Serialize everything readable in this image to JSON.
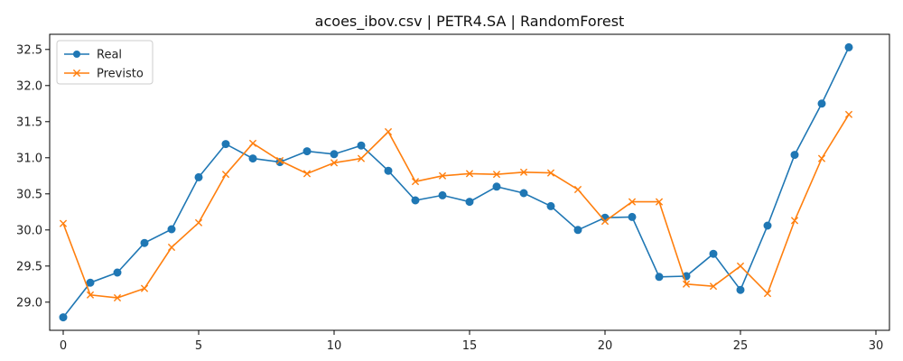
{
  "chart_data": {
    "type": "line",
    "title": "acoes_ibov.csv | PETR4.SA | RandomForest",
    "xlabel": "",
    "ylabel": "",
    "x": [
      0,
      1,
      2,
      3,
      4,
      5,
      6,
      7,
      8,
      9,
      10,
      11,
      12,
      13,
      14,
      15,
      16,
      17,
      18,
      19,
      20,
      21,
      22,
      23,
      24,
      25,
      26,
      27,
      28,
      29
    ],
    "series": [
      {
        "name": "Real",
        "color": "#1f77b4",
        "marker": "circle",
        "values": [
          28.79,
          29.27,
          29.41,
          29.82,
          30.01,
          30.73,
          31.19,
          30.99,
          30.94,
          31.09,
          31.05,
          31.17,
          30.82,
          30.41,
          30.48,
          30.39,
          30.6,
          30.51,
          30.33,
          30.0,
          30.17,
          30.18,
          29.35,
          29.36,
          29.67,
          29.17,
          30.06,
          31.04,
          31.75,
          32.53
        ]
      },
      {
        "name": "Previsto",
        "color": "#ff7f0e",
        "marker": "x",
        "values": [
          30.09,
          29.1,
          29.06,
          29.19,
          29.76,
          30.1,
          30.77,
          31.2,
          30.96,
          30.78,
          30.93,
          30.99,
          31.36,
          30.67,
          30.75,
          30.78,
          30.77,
          30.8,
          30.79,
          30.56,
          30.12,
          30.39,
          30.39,
          29.25,
          29.22,
          29.5,
          29.12,
          30.13,
          30.99,
          31.6
        ]
      }
    ],
    "xlim": [
      -0.5,
      30.5
    ],
    "ylim": [
      28.61,
      32.71
    ],
    "xticks": [
      0,
      5,
      10,
      15,
      20,
      25,
      30
    ],
    "yticks": [
      29.0,
      29.5,
      30.0,
      30.5,
      31.0,
      31.5,
      32.0,
      32.5
    ],
    "grid": false,
    "legend_position": "top-left"
  }
}
